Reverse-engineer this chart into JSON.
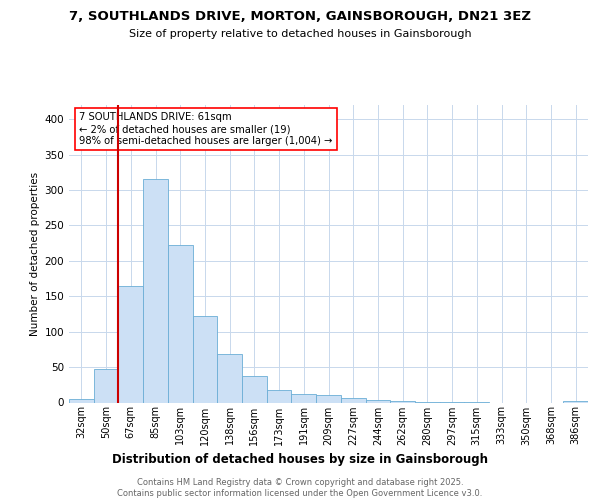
{
  "title1": "7, SOUTHLANDS DRIVE, MORTON, GAINSBOROUGH, DN21 3EZ",
  "title2": "Size of property relative to detached houses in Gainsborough",
  "xlabel": "Distribution of detached houses by size in Gainsborough",
  "ylabel": "Number of detached properties",
  "categories": [
    "32sqm",
    "50sqm",
    "67sqm",
    "85sqm",
    "103sqm",
    "120sqm",
    "138sqm",
    "156sqm",
    "173sqm",
    "191sqm",
    "209sqm",
    "227sqm",
    "244sqm",
    "262sqm",
    "280sqm",
    "297sqm",
    "315sqm",
    "333sqm",
    "350sqm",
    "368sqm",
    "386sqm"
  ],
  "values": [
    5,
    48,
    165,
    315,
    222,
    122,
    68,
    38,
    18,
    12,
    10,
    7,
    4,
    2,
    1,
    1,
    1,
    0,
    0,
    0,
    2
  ],
  "bar_color": "#cce0f5",
  "bar_edge_color": "#6baed6",
  "annotation_line1": "7 SOUTHLANDS DRIVE: 61sqm",
  "annotation_line2": "← 2% of detached houses are smaller (19)",
  "annotation_line3": "98% of semi-detached houses are larger (1,004) →",
  "vline_color": "#cc0000",
  "vline_pos": 2.0,
  "footer_text": "Contains HM Land Registry data © Crown copyright and database right 2025.\nContains public sector information licensed under the Open Government Licence v3.0.",
  "ylim": [
    0,
    420
  ],
  "yticks": [
    0,
    50,
    100,
    150,
    200,
    250,
    300,
    350,
    400
  ],
  "background_color": "#ffffff",
  "grid_color": "#c8d8ec"
}
